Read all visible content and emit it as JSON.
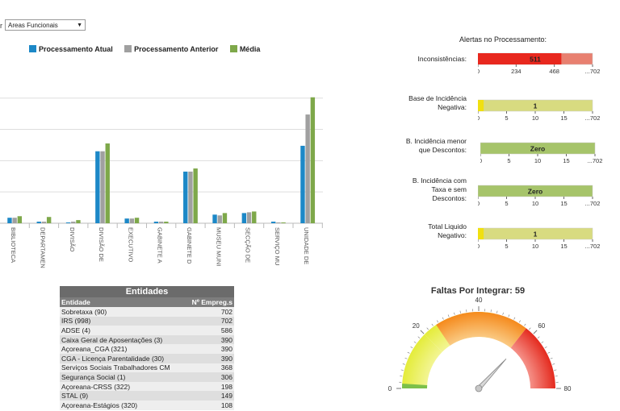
{
  "filter": {
    "prefix": "r",
    "selected": "Areas Funcionais"
  },
  "bar_chart": {
    "legend": [
      {
        "name": "Processamento Atual",
        "color": "#1c88c7"
      },
      {
        "name": "Processamento Anterior",
        "color": "#a0a0a0"
      },
      {
        "name": "Média",
        "color": "#7ea84a"
      }
    ]
  },
  "chart_data": [
    {
      "type": "bar",
      "categories": [
        "BIBLIOTECA",
        "DEPARTAMEN",
        "DIVISÃO",
        "DIVISÃO DE",
        "EXECUTIVO",
        "GABINETE A",
        "GABINETE D",
        "MUSEU MUNI",
        "SECÇÃO DE",
        "SERVIÇO MU",
        "UNIDADE DE"
      ],
      "series": [
        {
          "name": "Processamento Atual",
          "values": [
            7,
            2,
            1,
            92,
            6,
            2,
            66,
            11,
            13,
            2,
            99
          ]
        },
        {
          "name": "Processamento Anterior",
          "values": [
            7,
            2,
            2,
            92,
            6,
            2,
            66,
            10,
            14,
            1,
            139
          ]
        },
        {
          "name": "Média",
          "values": [
            9,
            8,
            4,
            102,
            7,
            2,
            70,
            13,
            15,
            1,
            161
          ]
        }
      ],
      "ylim": [
        0,
        170
      ],
      "grid": true
    },
    {
      "type": "gauge",
      "title": "Faltas Por Integrar: 59",
      "value": 59,
      "min": 0,
      "max": 80,
      "ticks": [
        "0",
        "20",
        "40",
        "60",
        "80"
      ]
    }
  ],
  "alerts": {
    "title": "Alertas no Processamento:",
    "items": [
      {
        "label_lines": [
          "Inconsistências:"
        ],
        "value": 511,
        "value_label": "511",
        "max": 702,
        "ticks": [
          "0",
          "234",
          "468",
          "...702"
        ],
        "bar_color": "#e8281e",
        "track_color": "#e88070"
      },
      {
        "label_lines": [
          "Base de Incidência",
          "Negativa:"
        ],
        "value": 1,
        "value_label": "1",
        "max": 20,
        "ticks": [
          "0",
          "5",
          "10",
          "15",
          "...702"
        ],
        "bar_color": "#f0e010",
        "track_color": "#d8db80"
      },
      {
        "label_lines": [
          "B. Incidência menor",
          "que Descontos:"
        ],
        "value": 0,
        "value_label": "Zero",
        "max": 20,
        "ticks": [
          "0",
          "5",
          "10",
          "15",
          "...702"
        ],
        "bar_color": "#a6c46a",
        "track_color": "#a6c46a"
      },
      {
        "label_lines": [
          "B. Incidência com",
          "Taxa e sem",
          "Descontos:"
        ],
        "value": 0,
        "value_label": "Zero",
        "max": 20,
        "ticks": [
          "0",
          "5",
          "10",
          "15",
          "...702"
        ],
        "bar_color": "#a6c46a",
        "track_color": "#a6c46a"
      },
      {
        "label_lines": [
          "Total Liquido",
          "Negativo:"
        ],
        "value": 1,
        "value_label": "1",
        "max": 20,
        "ticks": [
          "0",
          "5",
          "10",
          "15",
          "...702"
        ],
        "bar_color": "#f0e010",
        "track_color": "#d8db80"
      }
    ]
  },
  "table": {
    "title": "Entidades",
    "headers": [
      "Entidade",
      "Nº Empreg.s"
    ],
    "rows": [
      [
        "Sobretaxa (90)",
        "702"
      ],
      [
        "IRS (998)",
        "702"
      ],
      [
        "ADSE (4)",
        "586"
      ],
      [
        "Caixa Geral de Aposentações (3)",
        "390"
      ],
      [
        "Açoreana_CGA (321)",
        "390"
      ],
      [
        "CGA - Licença Parentalidade (30)",
        "390"
      ],
      [
        "Serviços Sociais Trabalhadores CM",
        "368"
      ],
      [
        "Segurança Social (1)",
        "306"
      ],
      [
        "Açoreana-CRSS (322)",
        "198"
      ],
      [
        "STAL (9)",
        "149"
      ],
      [
        "Açoreana-Estágios (320)",
        "108"
      ]
    ]
  }
}
